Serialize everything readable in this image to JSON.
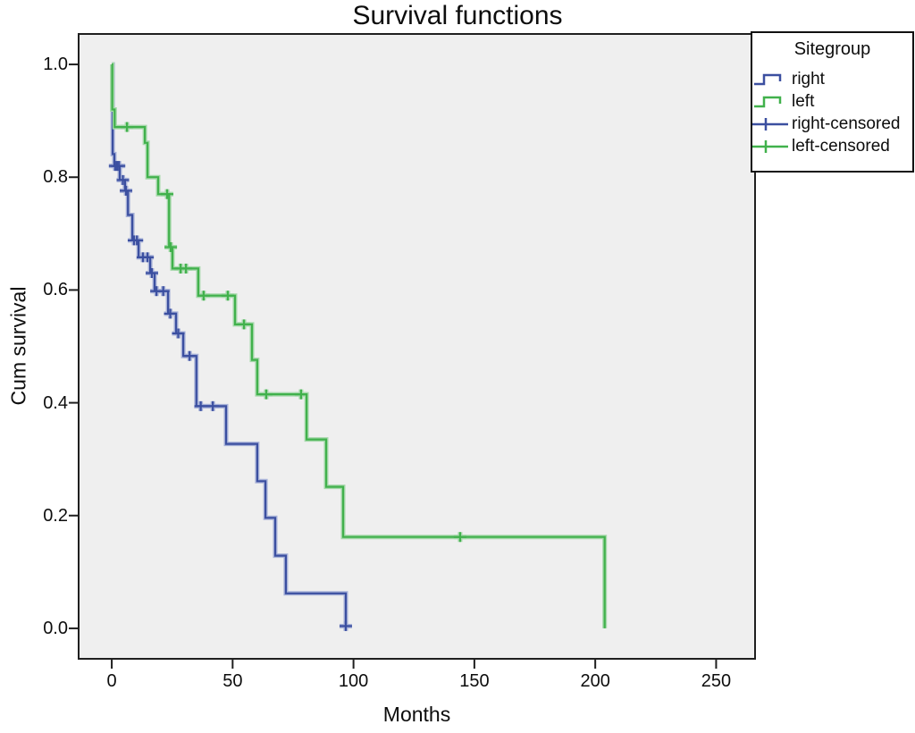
{
  "title": "Survival functions",
  "axes": {
    "x_label": "Months",
    "y_label": "Cum survival"
  },
  "legend": {
    "title": "Sitegroup",
    "items": [
      {
        "label": "right",
        "type": "line",
        "color": "#3B4FA0"
      },
      {
        "label": "left",
        "type": "line",
        "color": "#41B14C"
      },
      {
        "label": "right-censored",
        "type": "censor",
        "color": "#3B4FA0"
      },
      {
        "label": "left-censored",
        "type": "censor",
        "color": "#41B14C"
      }
    ]
  },
  "colors": {
    "plot_background": "#EFEFEF",
    "axis": "#1f1f1f",
    "right_series": "#3B4FA0",
    "right_halo": "#A8B2D8",
    "left_series": "#41B14C",
    "left_halo": "#A5D8AA"
  },
  "chart_data": {
    "type": "line",
    "subtype": "kaplan-meier-step",
    "title": "Survival functions",
    "xlabel": "Months",
    "ylabel": "Cum survival",
    "grid": false,
    "plot_bg": "#EFEFEF",
    "legend_position": "top-right-outside",
    "xlim": [
      -13.7,
      266.1
    ],
    "ylim": [
      -0.054,
      1.054
    ],
    "x_ticks": [
      0,
      50,
      100,
      150,
      200,
      250
    ],
    "y_ticks": [
      0.0,
      0.2,
      0.4,
      0.6,
      0.8,
      1.0
    ],
    "series": [
      {
        "name": "right",
        "color": "#3B4FA0",
        "halo_color": "#A8B2D8",
        "steps": [
          [
            0,
            1.0
          ],
          [
            0.4,
            0.841
          ],
          [
            1.1,
            0.82
          ],
          [
            3.3,
            0.795
          ],
          [
            5.5,
            0.776
          ],
          [
            6.7,
            0.733
          ],
          [
            8.5,
            0.688
          ],
          [
            11.1,
            0.658
          ],
          [
            15.9,
            0.63
          ],
          [
            17.7,
            0.598
          ],
          [
            23.3,
            0.558
          ],
          [
            26.6,
            0.523
          ],
          [
            29.6,
            0.483
          ],
          [
            35.0,
            0.394
          ],
          [
            47.3,
            0.327
          ],
          [
            60.2,
            0.261
          ],
          [
            63.6,
            0.196
          ],
          [
            67.6,
            0.129
          ],
          [
            72.0,
            0.062
          ],
          [
            96.8,
            0.0
          ]
        ],
        "censored": [
          [
            1.4,
            0.82
          ],
          [
            2.2,
            0.82
          ],
          [
            3.0,
            0.82
          ],
          [
            4.6,
            0.795
          ],
          [
            5.9,
            0.776
          ],
          [
            9.2,
            0.688
          ],
          [
            10.4,
            0.688
          ],
          [
            12.9,
            0.658
          ],
          [
            14.8,
            0.658
          ],
          [
            16.6,
            0.63
          ],
          [
            18.5,
            0.598
          ],
          [
            21.3,
            0.598
          ],
          [
            24.2,
            0.558
          ],
          [
            27.5,
            0.523
          ],
          [
            32.2,
            0.483
          ],
          [
            36.8,
            0.394
          ],
          [
            41.8,
            0.394
          ],
          [
            96.8,
            0.004
          ]
        ]
      },
      {
        "name": "left",
        "color": "#41B14C",
        "halo_color": "#A5D8AA",
        "steps": [
          [
            0,
            1.0
          ],
          [
            0.2,
            0.92
          ],
          [
            1.2,
            0.889
          ],
          [
            13.7,
            0.861
          ],
          [
            14.8,
            0.8
          ],
          [
            19.2,
            0.77
          ],
          [
            23.7,
            0.676
          ],
          [
            25.1,
            0.638
          ],
          [
            35.8,
            0.59
          ],
          [
            51.0,
            0.539
          ],
          [
            58.0,
            0.476
          ],
          [
            60.2,
            0.415
          ],
          [
            80.6,
            0.335
          ],
          [
            88.7,
            0.251
          ],
          [
            95.7,
            0.162
          ],
          [
            203.9,
            0.0
          ]
        ],
        "censored": [
          [
            6.3,
            0.889
          ],
          [
            22.9,
            0.77
          ],
          [
            24.4,
            0.676
          ],
          [
            28.5,
            0.638
          ],
          [
            30.7,
            0.638
          ],
          [
            38.0,
            0.59
          ],
          [
            48.0,
            0.59
          ],
          [
            54.7,
            0.539
          ],
          [
            63.9,
            0.415
          ],
          [
            78.3,
            0.415
          ],
          [
            144.1,
            0.162
          ]
        ]
      }
    ]
  }
}
